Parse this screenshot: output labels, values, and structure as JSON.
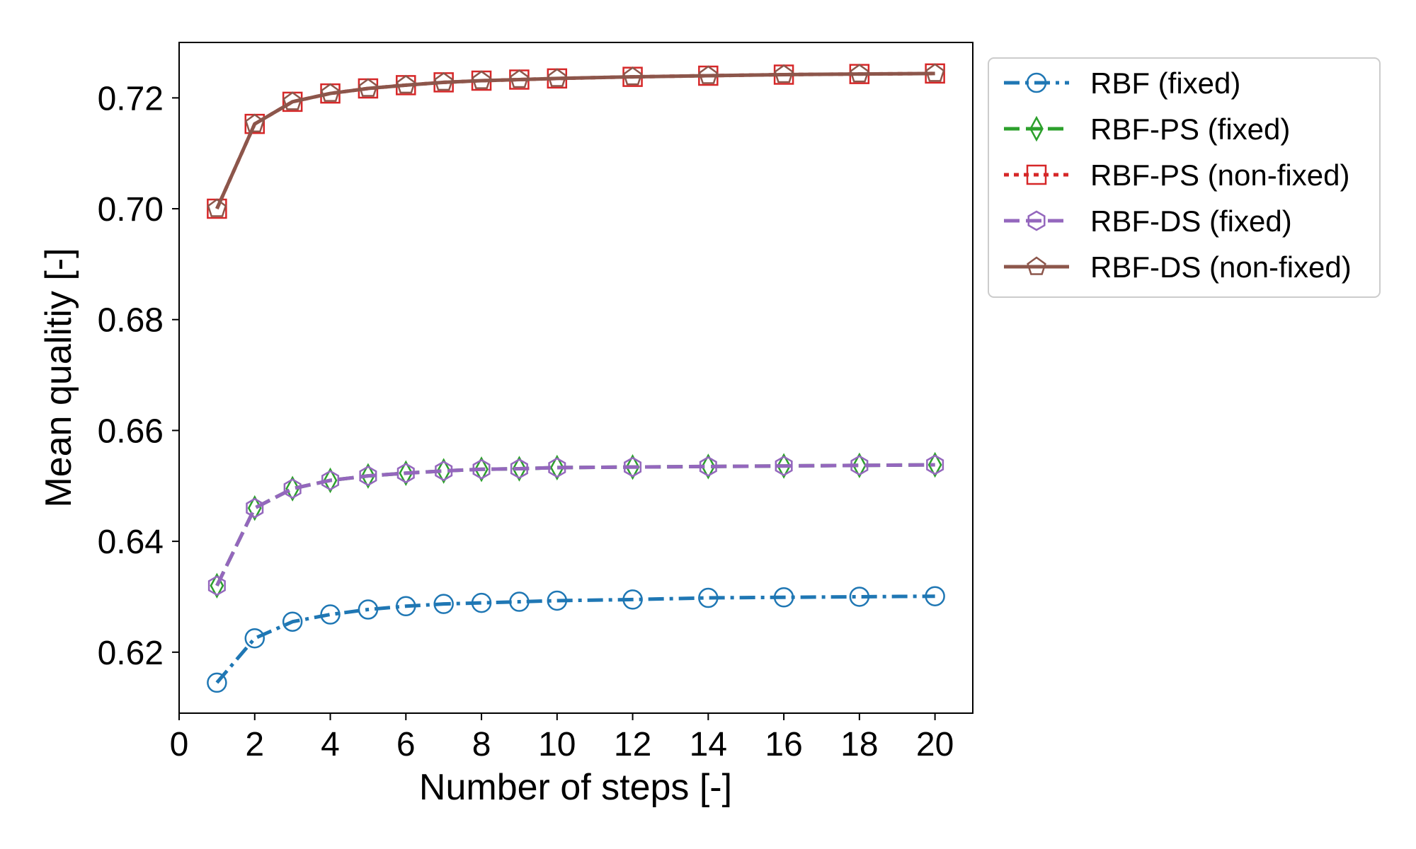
{
  "chart_data": {
    "type": "line",
    "xlabel": "Number of steps [-]",
    "ylabel": "Mean qualitiy [-]",
    "xlim": [
      0,
      21
    ],
    "ylim": [
      0.609,
      0.73
    ],
    "xticks": [
      0,
      2,
      4,
      6,
      8,
      10,
      12,
      14,
      16,
      18,
      20
    ],
    "yticks": [
      0.62,
      0.64,
      0.66,
      0.68,
      0.7,
      0.72
    ],
    "ytick_labels": [
      "0.62",
      "0.64",
      "0.66",
      "0.68",
      "0.70",
      "0.72"
    ],
    "legend_position": "outside-right-top",
    "x": [
      1,
      2,
      3,
      4,
      5,
      6,
      7,
      8,
      9,
      10,
      12,
      14,
      16,
      18,
      20
    ],
    "series": [
      {
        "name": "RBF (fixed)",
        "color": "#1f77b4",
        "linestyle": "dashdot",
        "marker": "circle",
        "values": [
          0.6145,
          0.6225,
          0.6255,
          0.6268,
          0.6277,
          0.6283,
          0.6287,
          0.6289,
          0.6291,
          0.6293,
          0.6295,
          0.6298,
          0.6299,
          0.63,
          0.6301
        ]
      },
      {
        "name": "RBF-PS (fixed)",
        "color": "#2ca02c",
        "linestyle": "dashed",
        "marker": "thin-diamond",
        "values": [
          0.632,
          0.646,
          0.6495,
          0.651,
          0.6518,
          0.6523,
          0.6527,
          0.653,
          0.6531,
          0.6533,
          0.6534,
          0.6535,
          0.6536,
          0.6537,
          0.6538
        ]
      },
      {
        "name": "RBF-PS (non-fixed)",
        "color": "#d62728",
        "linestyle": "dotted",
        "marker": "square",
        "values": [
          0.7,
          0.7153,
          0.7193,
          0.7208,
          0.7217,
          0.7223,
          0.7228,
          0.7231,
          0.7233,
          0.7235,
          0.7238,
          0.724,
          0.7242,
          0.7243,
          0.7244
        ]
      },
      {
        "name": "RBF-DS (fixed)",
        "color": "#9467bd",
        "linestyle": "dashed",
        "marker": "hexagon",
        "values": [
          0.632,
          0.646,
          0.6495,
          0.651,
          0.6518,
          0.6523,
          0.6527,
          0.653,
          0.6531,
          0.6533,
          0.6534,
          0.6535,
          0.6536,
          0.6537,
          0.6538
        ]
      },
      {
        "name": "RBF-DS (non-fixed)",
        "color": "#8c564b",
        "linestyle": "solid",
        "marker": "pentagon",
        "values": [
          0.7,
          0.7153,
          0.7193,
          0.7208,
          0.7217,
          0.7223,
          0.7228,
          0.7231,
          0.7233,
          0.7235,
          0.7238,
          0.724,
          0.7242,
          0.7243,
          0.7244
        ]
      }
    ]
  }
}
